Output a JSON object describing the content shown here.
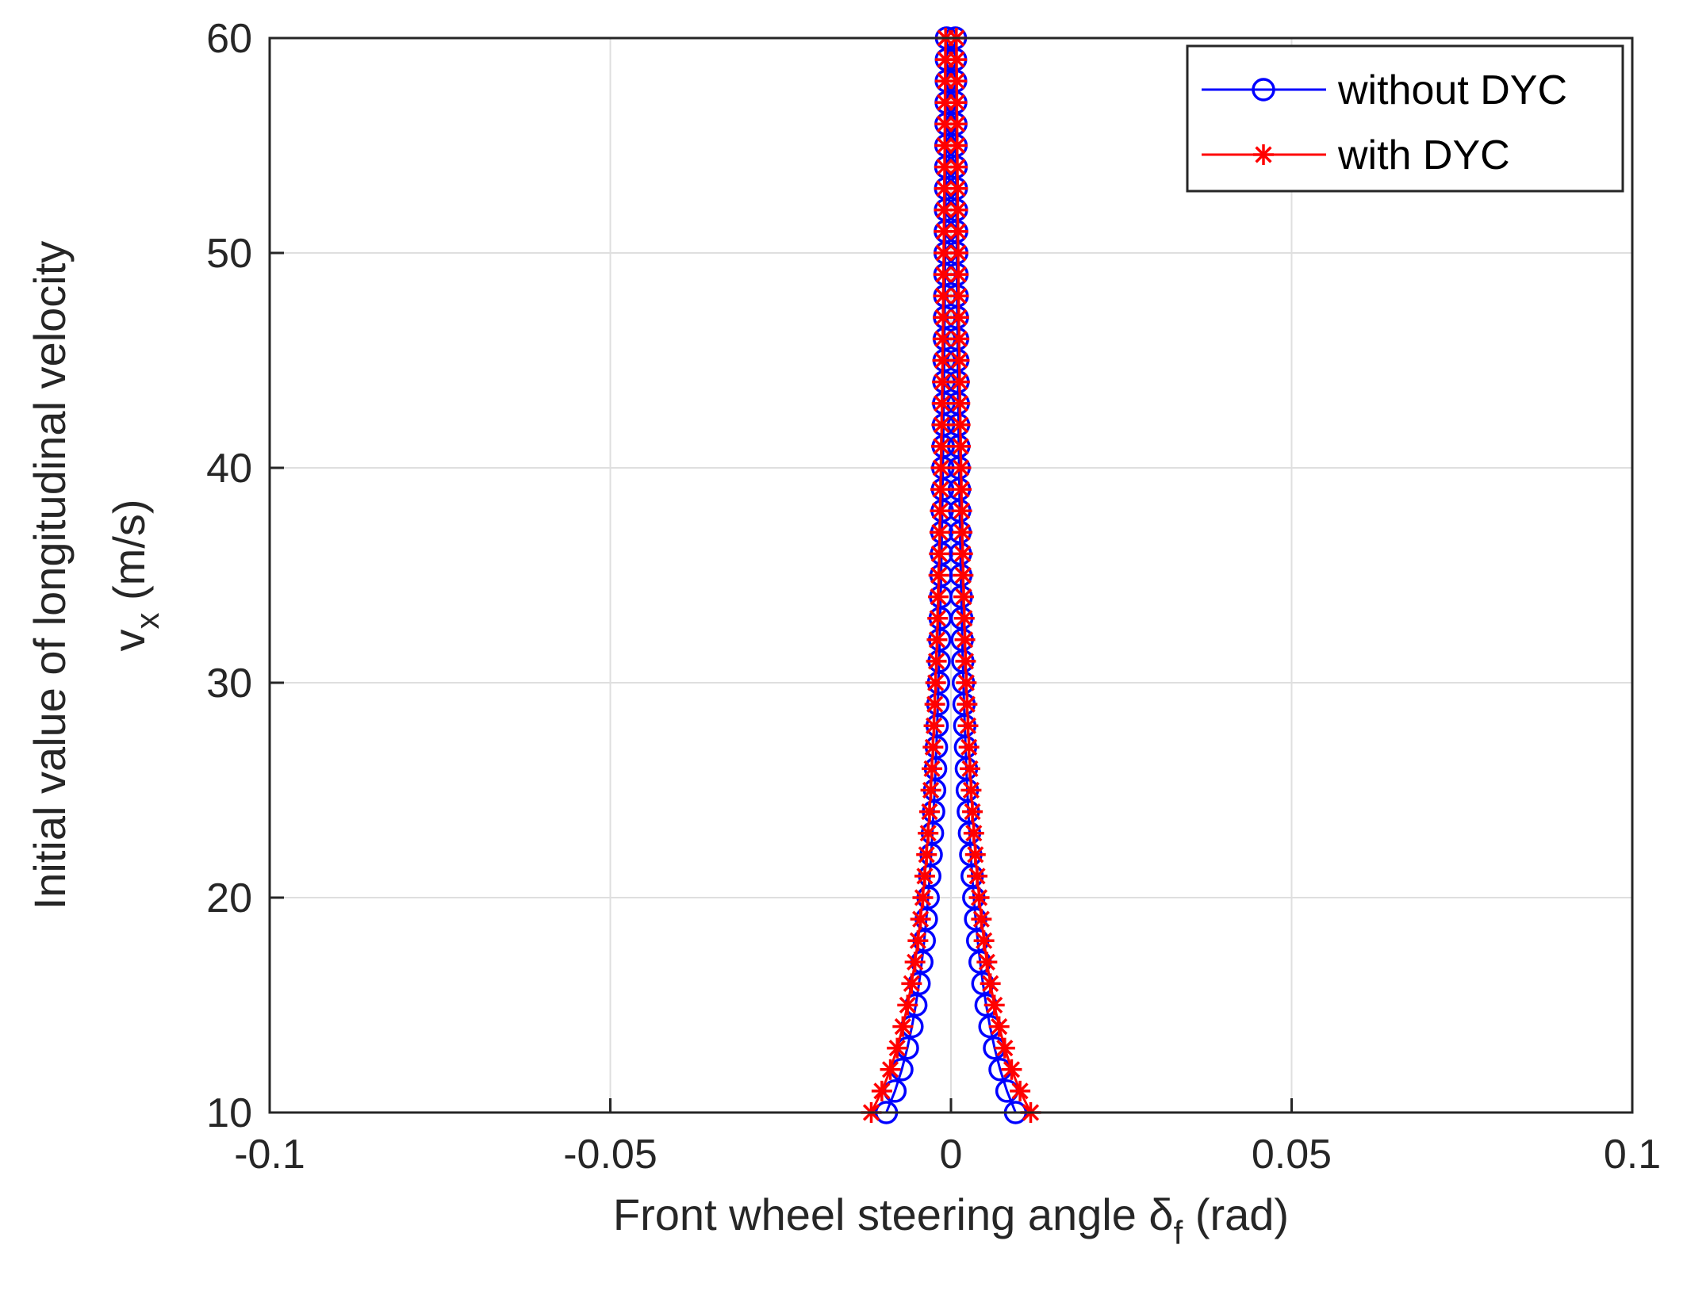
{
  "chart_data": {
    "type": "line",
    "title": "",
    "xlabel": "Front wheel steering angle  δ",
    "xlabel_subscript": "f",
    "xlabel_unit": " (rad)",
    "ylabel_line1": "Initial value of longitudinal velocity",
    "ylabel_line2": "v",
    "ylabel_line2_subscript": "x",
    "ylabel_line2_unit": " (m/s)",
    "xlim": [
      -0.1,
      0.1
    ],
    "ylim": [
      10,
      60
    ],
    "xticks": [
      -0.1,
      -0.05,
      0,
      0.05,
      0.1
    ],
    "xtick_labels": [
      "-0.1",
      "-0.05",
      "0",
      "0.05",
      "0.1"
    ],
    "yticks": [
      10,
      20,
      30,
      40,
      50,
      60
    ],
    "ytick_labels": [
      "10",
      "20",
      "30",
      "40",
      "50",
      "60"
    ],
    "grid": true,
    "legend_position": "top-right",
    "series": [
      {
        "name": "without DYC",
        "color": "#0000ff",
        "marker": "circle",
        "coefficient": 0.3,
        "y": [
          10,
          11,
          12,
          13,
          14,
          15,
          16,
          17,
          18,
          19,
          20,
          21,
          22,
          23,
          24,
          25,
          26,
          27,
          28,
          29,
          30,
          31,
          32,
          33,
          34,
          35,
          36,
          37,
          38,
          39,
          40,
          41,
          42,
          43,
          44,
          45,
          46,
          47,
          48,
          49,
          50,
          51,
          52,
          53,
          54,
          55,
          56,
          57,
          58,
          59,
          60
        ]
      },
      {
        "name": "with DYC",
        "color": "#ff0000",
        "marker": "asterisk",
        "coefficient": 0.37,
        "y": [
          10,
          11,
          12,
          13,
          14,
          15,
          16,
          17,
          18,
          19,
          20,
          21,
          22,
          23,
          24,
          25,
          26,
          27,
          28,
          29,
          30,
          31,
          32,
          33,
          34,
          35,
          36,
          37,
          38,
          39,
          40,
          41,
          42,
          43,
          44,
          45,
          46,
          47,
          48,
          49,
          50,
          51,
          52,
          53,
          54,
          55,
          56,
          57,
          58,
          59,
          60
        ]
      }
    ],
    "note": "Each series forms two symmetric branches: x = ± coefficient / y^1.5 (rad) for each y value"
  }
}
